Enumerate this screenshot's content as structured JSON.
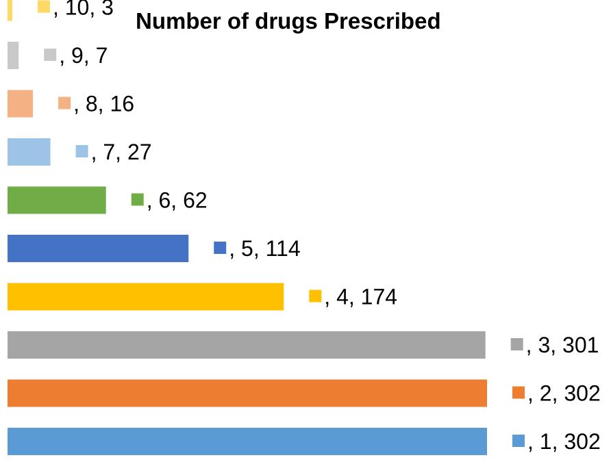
{
  "chart_data": {
    "type": "bar",
    "orientation": "horizontal",
    "title": "Number of drugs Prescribed",
    "categories": [
      "1",
      "2",
      "3",
      "4",
      "5",
      "6",
      "7",
      "8",
      "9",
      "10"
    ],
    "values": [
      302,
      302,
      301,
      174,
      114,
      62,
      27,
      16,
      7,
      3
    ],
    "data_labels": [
      ", 1, 302",
      ", 2, 302",
      ", 3, 301",
      ", 4, 174",
      ", 5, 114",
      ", 6, 62",
      ", 7, 27",
      ", 8, 16",
      ", 9, 7",
      ", 10, 3"
    ],
    "colors": [
      "#5B9BD5",
      "#ED7D31",
      "#A5A5A5",
      "#FFC000",
      "#4472C4",
      "#70AD47",
      "#9DC3E6",
      "#F4B183",
      "#C9C9C9",
      "#FFD966"
    ],
    "xlim": [
      0,
      302
    ],
    "grid": false,
    "legend": "none",
    "xlabel": "",
    "ylabel": ""
  }
}
